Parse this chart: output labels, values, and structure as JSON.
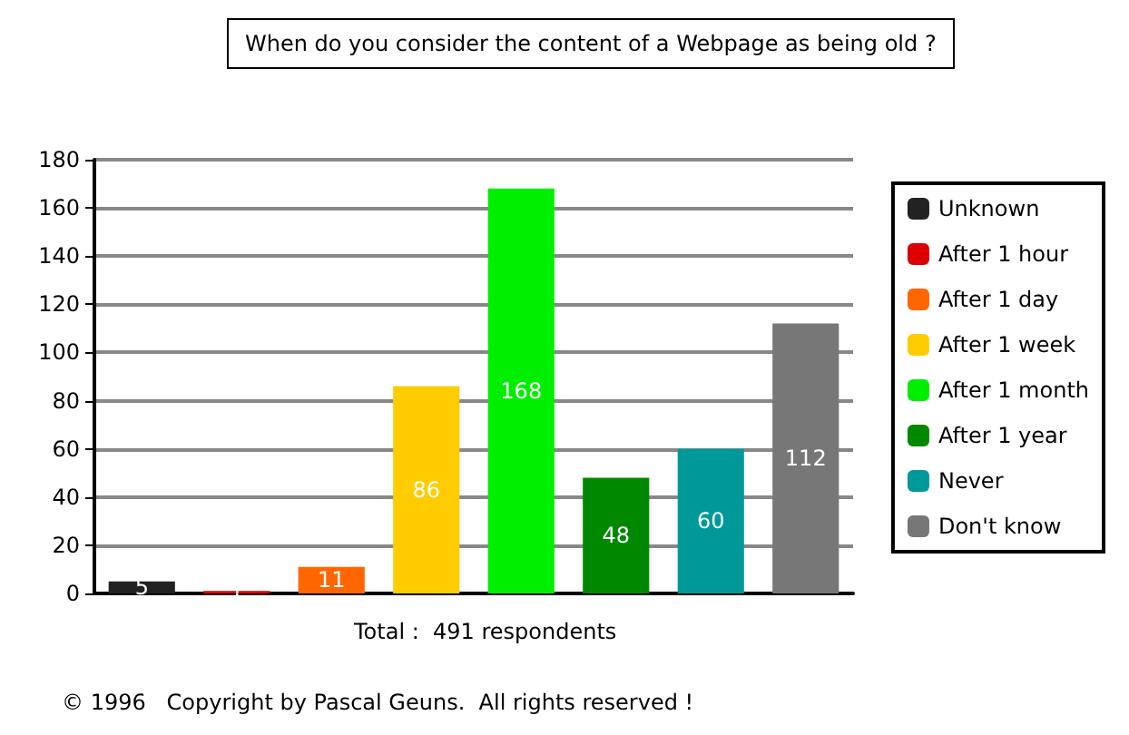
{
  "chart_data": {
    "type": "bar",
    "title": "When do you consider the content of a Webpage as being old ?",
    "categories": [
      null,
      null,
      null,
      null,
      null,
      null,
      null,
      null
    ],
    "series": [
      {
        "name": "Unknown",
        "color": "#222222",
        "values": [
          5,
          null,
          null,
          null,
          null,
          null,
          null,
          null
        ]
      },
      {
        "name": "After 1 hour",
        "color": "#dd0000",
        "values": [
          null,
          1,
          null,
          null,
          null,
          null,
          null,
          null
        ]
      },
      {
        "name": "After 1 day",
        "color": "#ff6600",
        "values": [
          null,
          null,
          11,
          null,
          null,
          null,
          null,
          null
        ]
      },
      {
        "name": "After 1 week",
        "color": "#ffcc00",
        "values": [
          null,
          null,
          null,
          86,
          null,
          null,
          null,
          null
        ]
      },
      {
        "name": "After 1 month",
        "color": "#00ee00",
        "values": [
          null,
          null,
          null,
          null,
          168,
          null,
          null,
          null
        ]
      },
      {
        "name": "After 1 year",
        "color": "#008800",
        "values": [
          null,
          null,
          null,
          null,
          null,
          48,
          null,
          null
        ]
      },
      {
        "name": "Never",
        "color": "#009999",
        "values": [
          null,
          null,
          null,
          null,
          null,
          null,
          60,
          null
        ]
      },
      {
        "name": "Don't know",
        "color": "#777777",
        "values": [
          null,
          null,
          null,
          null,
          null,
          null,
          null,
          112
        ]
      }
    ],
    "ylim": [
      0,
      180
    ],
    "yticks": [
      0,
      20,
      40,
      60,
      80,
      100,
      120,
      140,
      160,
      180
    ],
    "grid": "y",
    "legend": "right",
    "data_labels": true,
    "annotations": [
      "Total :  491 respondents",
      "© 1996   Copyright by Pascal Geuns.  All rights reserved !"
    ]
  }
}
